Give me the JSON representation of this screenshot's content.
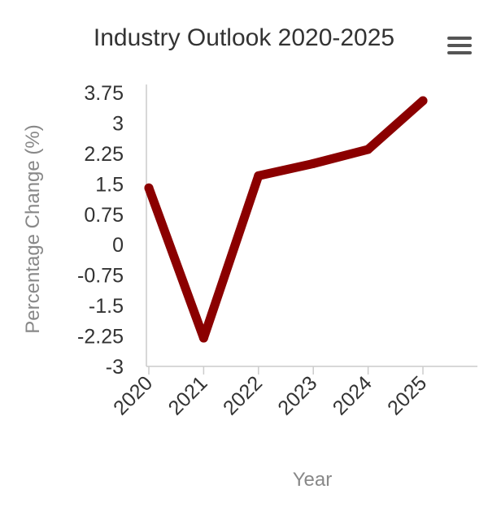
{
  "chart_data": {
    "type": "line",
    "title": "Industry Outlook 2020-2025",
    "xlabel": "Year",
    "ylabel": "Percentage Change (%)",
    "categories": [
      "2020",
      "2021",
      "2022",
      "2023",
      "2024",
      "2025"
    ],
    "series": [
      {
        "values": [
          1.4,
          -2.3,
          1.7,
          2.0,
          2.35,
          3.55
        ],
        "color": "#8b0000"
      }
    ],
    "ylim": [
      -3,
      3.75
    ],
    "yticks": [
      "3.75",
      "3",
      "2.25",
      "1.5",
      "0.75",
      "0",
      "-0.75",
      "-1.5",
      "-2.25",
      "-3"
    ],
    "grid": false,
    "legend": "none"
  },
  "menu_icon": "hamburger-menu-icon"
}
